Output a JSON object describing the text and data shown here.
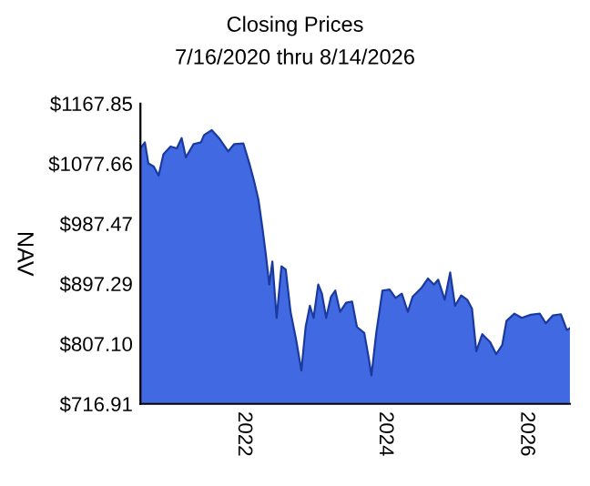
{
  "chart_data": {
    "type": "area",
    "title": "Closing Prices",
    "subtitle": "7/16/2020 thru 8/14/2026",
    "ylabel": "NAV",
    "x": [
      "2020-07-16",
      "2020-08-08",
      "2020-08-26",
      "2020-09-23",
      "2020-10-18",
      "2020-11-12",
      "2020-12-19",
      "2021-01-20",
      "2021-02-14",
      "2021-03-08",
      "2021-04-17",
      "2021-05-25",
      "2021-06-10",
      "2021-07-20",
      "2021-08-26",
      "2021-10-13",
      "2021-11-13",
      "2021-12-30",
      "2022-01-30",
      "2022-02-24",
      "2022-03-18",
      "2022-04-09",
      "2022-04-25",
      "2022-05-13",
      "2022-05-29",
      "2022-06-20",
      "2022-07-15",
      "2022-08-06",
      "2022-08-31",
      "2022-09-28",
      "2022-10-26",
      "2022-11-17",
      "2022-12-09",
      "2022-12-28",
      "2023-01-21",
      "2023-02-09",
      "2023-03-03",
      "2023-03-28",
      "2023-04-19",
      "2023-05-14",
      "2023-06-14",
      "2023-07-15",
      "2023-08-09",
      "2023-09-16",
      "2023-10-11",
      "2023-10-23",
      "2023-11-17",
      "2023-12-19",
      "2024-01-25",
      "2024-02-25",
      "2024-03-28",
      "2024-04-28",
      "2024-05-23",
      "2024-07-09",
      "2024-08-10",
      "2024-09-10",
      "2024-10-02",
      "2024-11-05",
      "2024-12-03",
      "2024-12-28",
      "2025-01-29",
      "2025-03-01",
      "2025-03-26",
      "2025-04-17",
      "2025-05-18",
      "2025-06-28",
      "2025-07-29",
      "2025-08-29",
      "2025-09-20",
      "2025-10-31",
      "2025-12-08",
      "2026-01-23",
      "2026-03-11",
      "2026-04-11",
      "2026-05-18",
      "2026-06-28",
      "2026-07-29",
      "2026-08-14"
    ],
    "series": [
      {
        "color": "#4169e1",
        "values": [
          1100.6,
          1109.6,
          1077.9,
          1073.3,
          1059.7,
          1091.5,
          1103.3,
          1100.6,
          1116,
          1087,
          1107,
          1109.6,
          1120.6,
          1127.9,
          1116,
          1096,
          1107,
          1108,
          1077.9,
          1050.6,
          1023.3,
          977.9,
          941.5,
          896,
          930.5,
          846,
          923.3,
          918.7,
          855.1,
          814.2,
          766.9,
          832.4,
          864.2,
          846,
          896,
          882.4,
          846,
          877.8,
          887,
          855.1,
          868.7,
          870.6,
          832.4,
          823.3,
          782.4,
          759.6,
          823.3,
          887,
          888.7,
          876,
          882.4,
          855.1,
          877.8,
          891.5,
          905.1,
          896,
          903.3,
          873.3,
          914.2,
          864.2,
          879.7,
          873.3,
          859.6,
          796,
          821.5,
          809.6,
          791.5,
          805.1,
          841.5,
          852.4,
          846,
          850.6,
          852.4,
          837.9,
          849.7,
          851.5,
          827.8,
          830.6
        ]
      }
    ],
    "xlim": [
      "2020-07-16",
      "2026-08-14"
    ],
    "xticks": [
      {
        "value": "2022-01-01",
        "label": "2022"
      },
      {
        "value": "2024-01-01",
        "label": "2024"
      },
      {
        "value": "2026-01-01",
        "label": "2026"
      }
    ],
    "ylim": [
      716.91,
      1167.85
    ],
    "yticks": [
      {
        "value": 716.91,
        "label": "$716.91"
      },
      {
        "value": 807.1,
        "label": "$807.10"
      },
      {
        "value": 897.29,
        "label": "$897.29"
      },
      {
        "value": 987.47,
        "label": "$987.47"
      },
      {
        "value": 1077.66,
        "label": "$1077.66"
      },
      {
        "value": 1167.85,
        "label": "$1167.85"
      }
    ]
  }
}
